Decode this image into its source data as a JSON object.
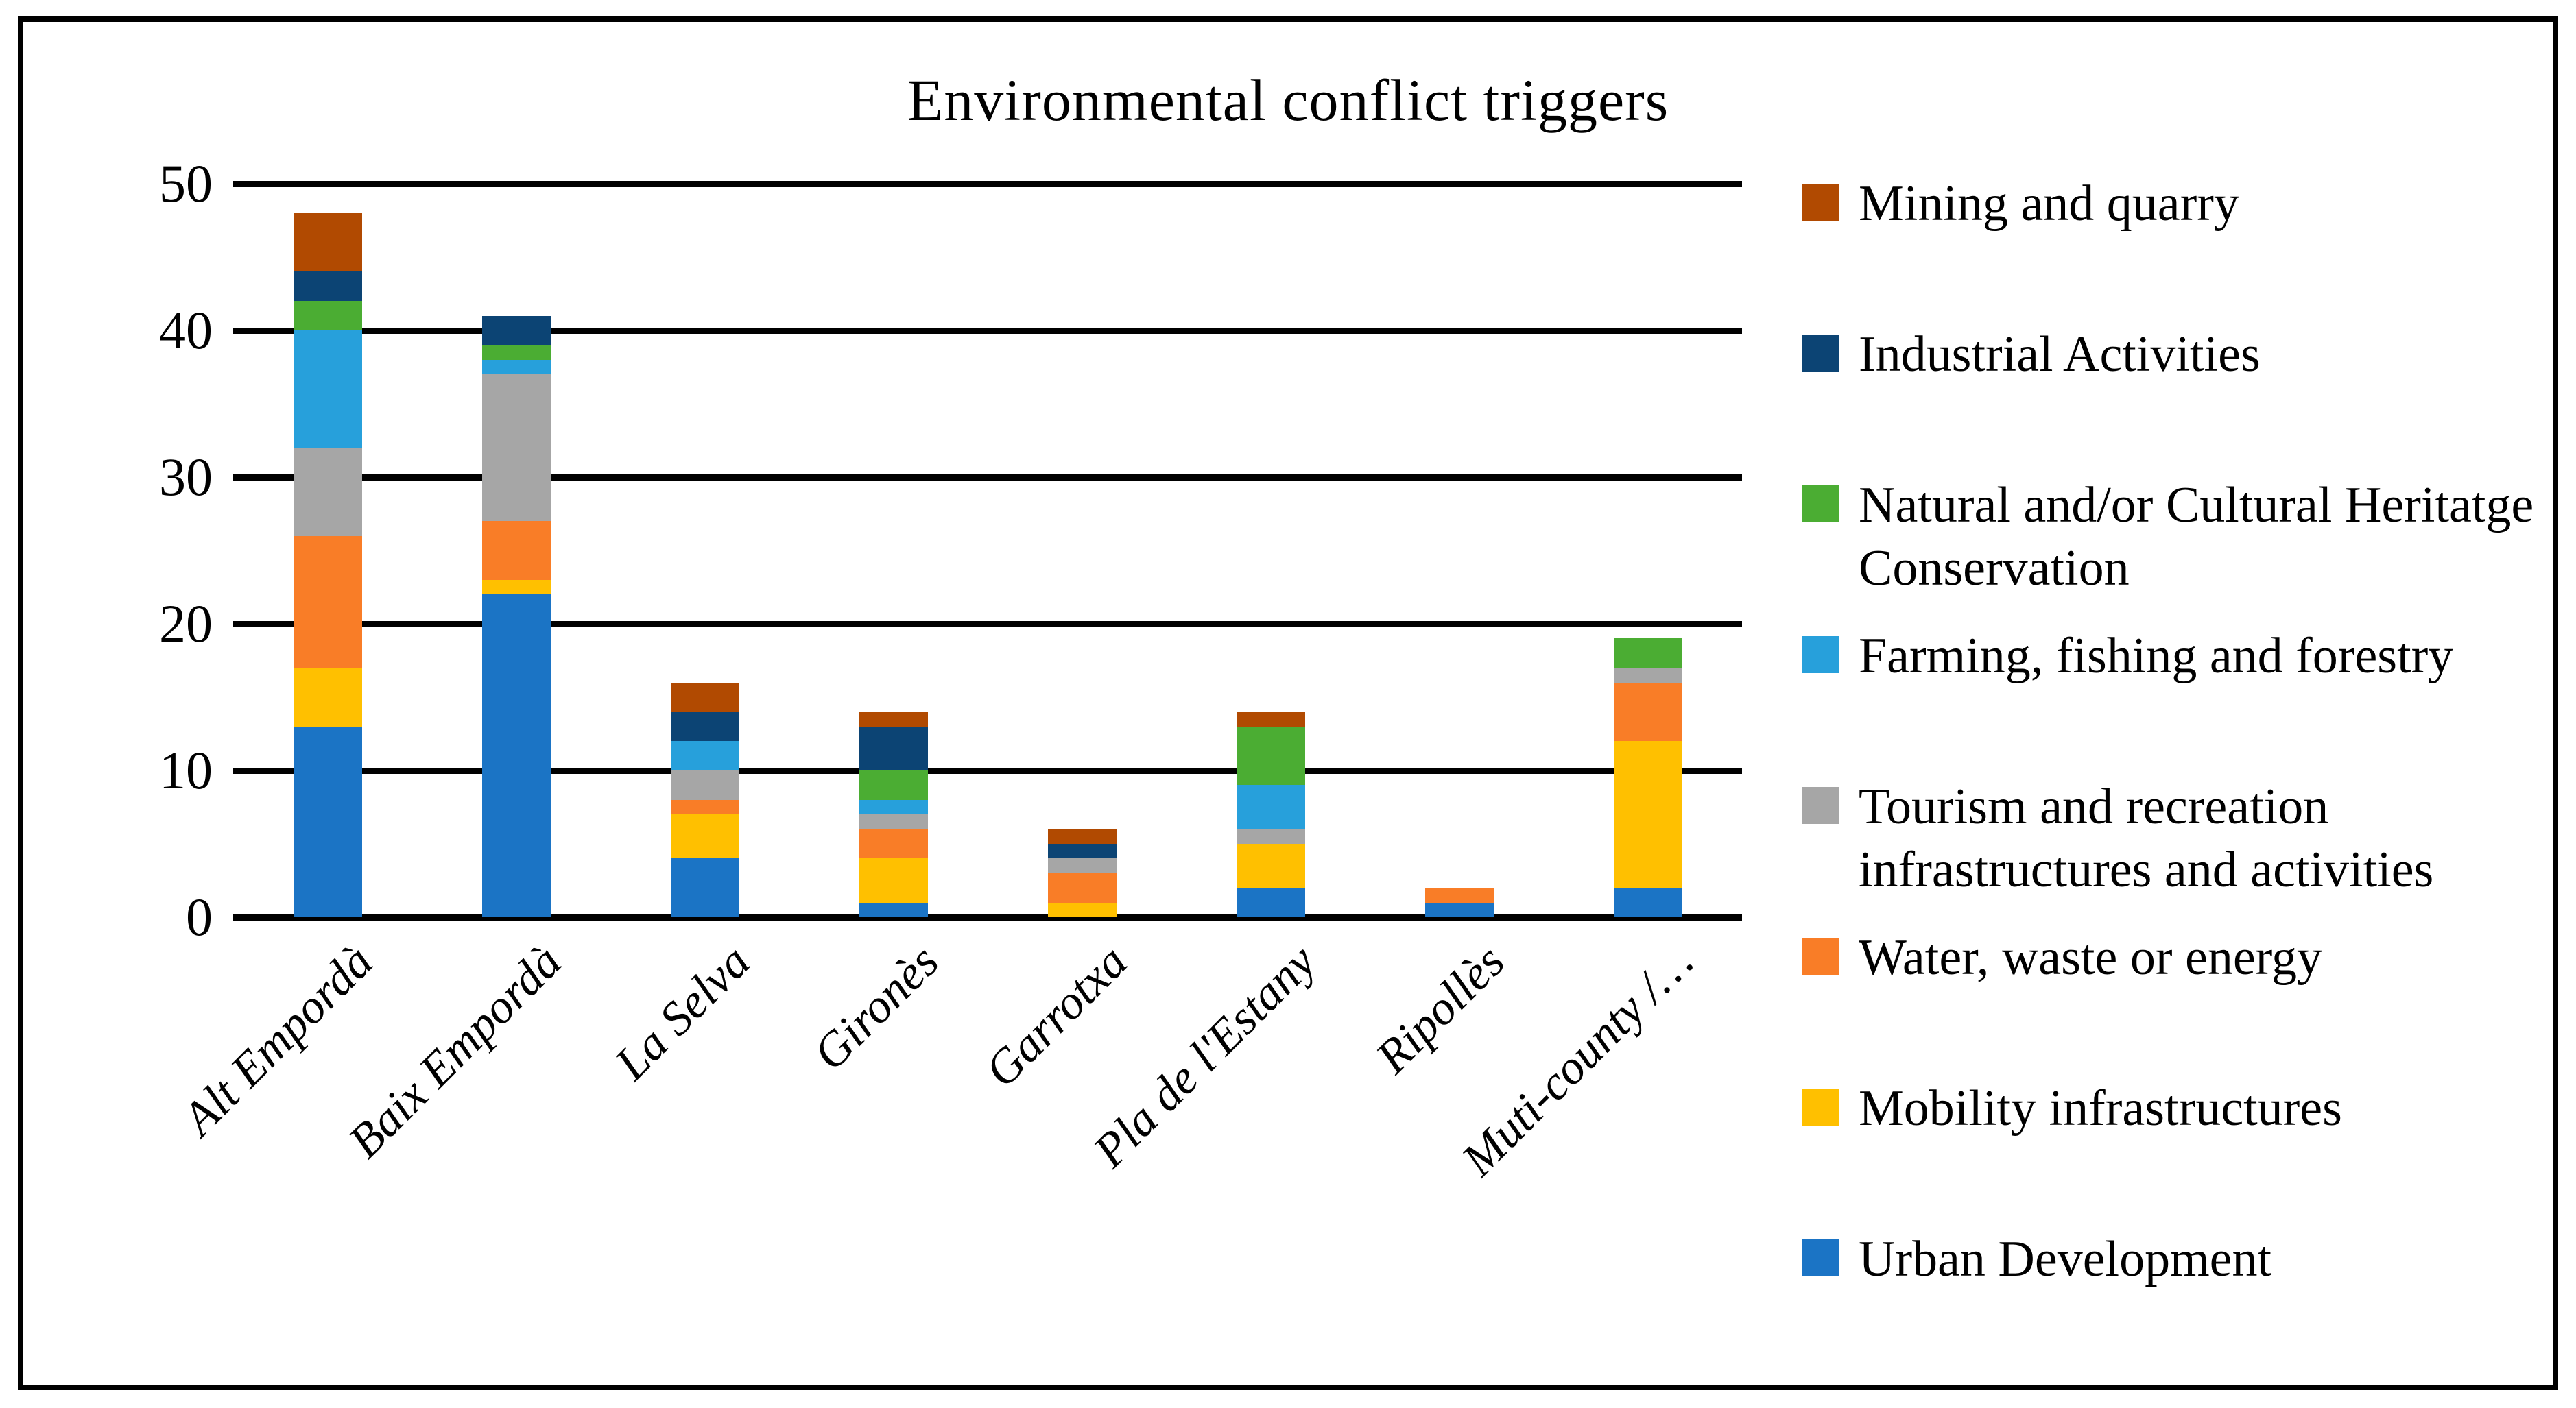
{
  "chart_data": {
    "type": "bar",
    "stacked": true,
    "title": "Environmental conflict triggers",
    "categories": [
      "Alt Empordà",
      "Baix Empordà",
      "La Selva",
      "Gironès",
      "Garrotxa",
      "Pla de l'Estany",
      "Ripollès",
      "Muti-county /…"
    ],
    "series": [
      {
        "name": "Urban Development",
        "color": "#1B74C5",
        "values": [
          13,
          22,
          4,
          1,
          0,
          2,
          1,
          2
        ]
      },
      {
        "name": "Mobility infrastructures",
        "color": "#FFC000",
        "values": [
          4,
          1,
          3,
          3,
          1,
          3,
          0,
          10
        ]
      },
      {
        "name": "Water, waste or energy",
        "color": "#F97D27",
        "values": [
          9,
          4,
          1,
          2,
          2,
          0,
          1,
          4
        ]
      },
      {
        "name": "Tourism and recreation infrastructures and activities",
        "color": "#A6A6A6",
        "values": [
          6,
          10,
          2,
          1,
          1,
          1,
          0,
          1
        ]
      },
      {
        "name": "Farming, fishing and forestry",
        "color": "#27A0DB",
        "values": [
          8,
          1,
          2,
          1,
          0,
          3,
          0,
          0
        ]
      },
      {
        "name": "Natural and/or Cultural Heritatge Conservation",
        "color": "#4BAD33",
        "values": [
          2,
          1,
          0,
          2,
          0,
          4,
          0,
          2
        ]
      },
      {
        "name": "Industrial Activities",
        "color": "#0C4474",
        "values": [
          2,
          2,
          2,
          3,
          1,
          0,
          0,
          0
        ]
      },
      {
        "name": "Mining and quarry",
        "color": "#B14A01",
        "values": [
          4,
          0,
          2,
          1,
          1,
          1,
          0,
          0
        ]
      }
    ],
    "column_totals": [
      48,
      41,
      16,
      14,
      6,
      14,
      2,
      19
    ],
    "y_ticks": [
      0,
      10,
      20,
      30,
      40,
      50
    ],
    "ylim": [
      0,
      50
    ],
    "grid": true,
    "legend_position": "right",
    "legend_order_top_to_bottom": [
      "Mining and quarry",
      "Industrial Activities",
      "Natural and/or Cultural Heritatge Conservation",
      "Farming, fishing and forestry",
      "Tourism and recreation infrastructures and activities",
      "Water, waste or energy",
      "Mobility infrastructures",
      "Urban Development"
    ]
  }
}
